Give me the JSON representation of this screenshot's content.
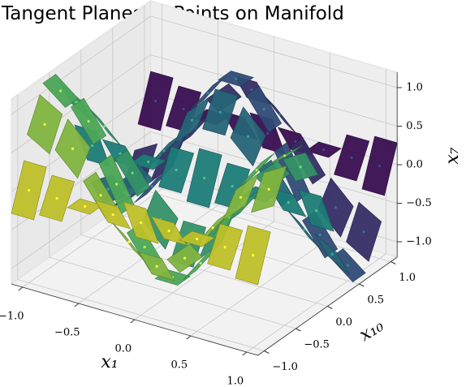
{
  "chart_data": {
    "type": "surface3d",
    "title": "Tangent Planes at Points on Manifold",
    "xlabel": "x₁",
    "ylabel": "x₁₀",
    "zlabel": "x₇",
    "x": [
      -1,
      -0.75,
      -0.5,
      -0.25,
      0,
      0.25,
      0.5,
      0.75,
      1
    ],
    "y": [
      -1,
      -0.75,
      -0.5,
      -0.25,
      0,
      0.25,
      0.5,
      0.75,
      1
    ],
    "z": [
      [
        0,
        0,
        0,
        0,
        0,
        0,
        0,
        0,
        0
      ],
      [
        0.71,
        0.5,
        0,
        -0.5,
        -0.71,
        -0.5,
        0,
        0.5,
        0.71
      ],
      [
        1,
        0.71,
        0,
        -0.71,
        -1,
        -0.71,
        0,
        0.71,
        1
      ],
      [
        0.71,
        0.5,
        0,
        -0.5,
        -0.71,
        -0.5,
        0,
        0.5,
        0.71
      ],
      [
        0,
        0,
        0,
        0,
        0,
        0,
        0,
        0,
        0
      ],
      [
        -0.71,
        -0.5,
        0,
        0.5,
        0.71,
        0.5,
        0,
        -0.5,
        -0.71
      ],
      [
        -1,
        -0.71,
        0,
        0.71,
        1,
        0.71,
        0,
        -0.71,
        -1
      ],
      [
        -0.71,
        -0.5,
        0,
        0.5,
        0.71,
        0.5,
        0,
        -0.5,
        -0.71
      ],
      [
        0,
        0,
        0,
        0,
        0,
        0,
        0,
        0,
        0
      ]
    ],
    "xlim": [
      -1.1,
      1.1
    ],
    "ylim": [
      -1.1,
      1.1
    ],
    "zlim": [
      -1.2,
      1.2
    ],
    "xticks": [
      {
        "value": -1,
        "label": "−1.0"
      },
      {
        "value": -0.5,
        "label": "−0.5"
      },
      {
        "value": 0,
        "label": "0.0"
      },
      {
        "value": 0.5,
        "label": "0.5"
      },
      {
        "value": 1,
        "label": "1.0"
      }
    ],
    "yticks": [
      {
        "value": -1,
        "label": "−1.0"
      },
      {
        "value": -0.5,
        "label": "−0.5"
      },
      {
        "value": 0,
        "label": "0.0"
      },
      {
        "value": 0.5,
        "label": "0.5"
      },
      {
        "value": 1,
        "label": "1.0"
      }
    ],
    "zticks": [
      {
        "value": -1,
        "label": "−1.0"
      },
      {
        "value": -0.5,
        "label": "−0.5"
      },
      {
        "value": 0,
        "label": "0.0"
      },
      {
        "value": 0.5,
        "label": "0.5"
      },
      {
        "value": 1,
        "label": "1.0"
      }
    ],
    "colormap": "viridis",
    "grid": true
  }
}
